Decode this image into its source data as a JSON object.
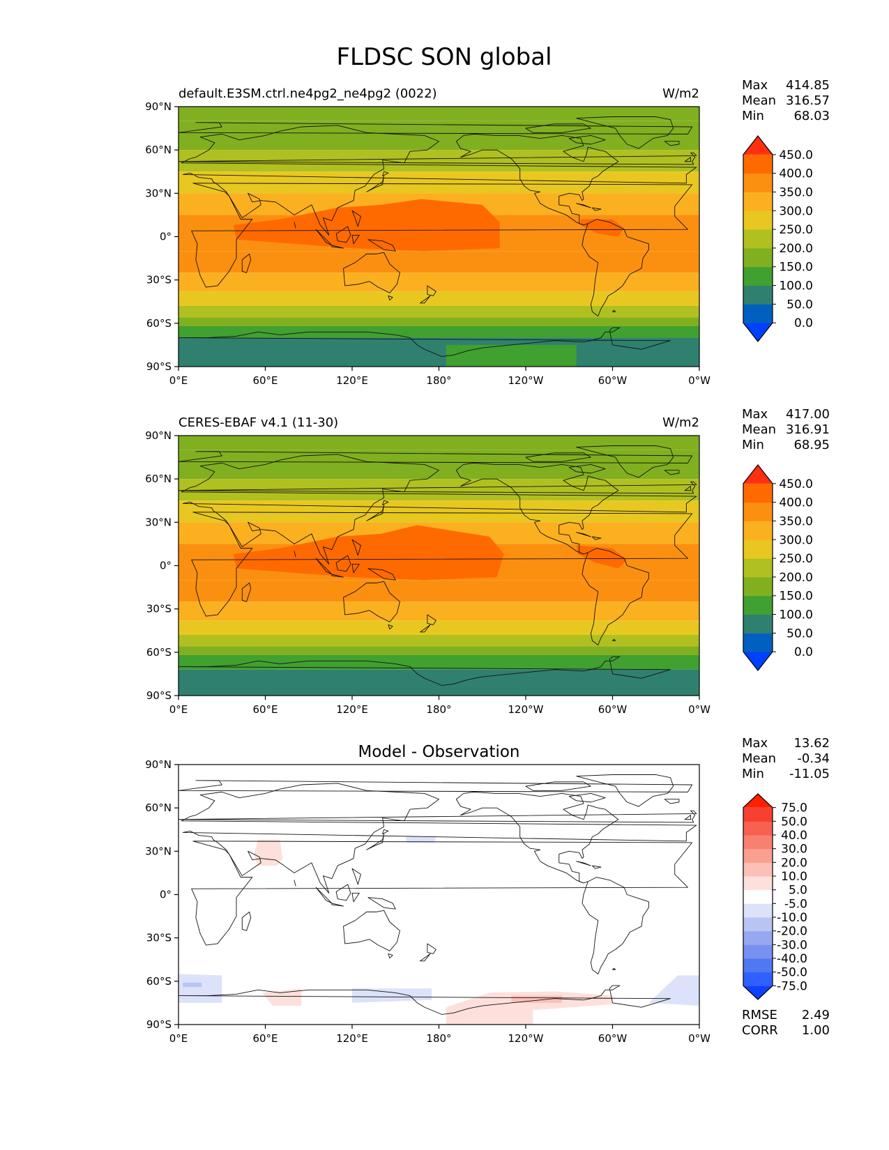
{
  "figure": {
    "title": "FLDSC SON global"
  },
  "axes": {
    "lat_ticks": [
      "90°N",
      "60°N",
      "30°N",
      "0°",
      "30°S",
      "60°S",
      "90°S"
    ],
    "lon_ticks": [
      "0°E",
      "60°E",
      "120°E",
      "180°",
      "120°W",
      "60°W",
      "0°W"
    ]
  },
  "stat_labels": {
    "max": "Max",
    "mean": "Mean",
    "min": "Min",
    "rmse": "RMSE",
    "corr": "CORR"
  },
  "palettes": {
    "absolute": [
      "#0040ff",
      "#0060c0",
      "#308070",
      "#40a030",
      "#80b020",
      "#b0c020",
      "#e8c820",
      "#fbb020",
      "#fb9010",
      "#ff6a00",
      "#ff3010"
    ],
    "difference": [
      "#1040ff",
      "#3060ff",
      "#5078f0",
      "#7890f0",
      "#98a8f0",
      "#b8c4f4",
      "#dce2fa",
      "#ffffff",
      "#fde0dc",
      "#fcc0b8",
      "#fba090",
      "#f88070",
      "#f86050",
      "#f84030",
      "#ff2000"
    ]
  },
  "chart_data": [
    {
      "type": "heatmap",
      "subtitle_left": "default.E3SM.ctrl.ne4pg2_ne4pg2 (0022)",
      "subtitle_center": "",
      "units": "W/m2",
      "stats": {
        "max": "414.85",
        "mean": "316.57",
        "min": "68.03"
      },
      "colorbar": {
        "levels": [
          "0.0",
          "50.0",
          "100.0",
          "150.0",
          "200.0",
          "250.0",
          "300.0",
          "350.0",
          "400.0",
          "450.0"
        ],
        "palette": "absolute",
        "extend": "both"
      },
      "xlim": [
        0,
        360
      ],
      "ylim": [
        -90,
        90
      ],
      "grid": false,
      "zonal_bands": [
        {
          "lat": [
            80,
            90
          ],
          "class": 4
        },
        {
          "lat": [
            60,
            80
          ],
          "class": 4
        },
        {
          "lat": [
            45,
            60
          ],
          "class": 5
        },
        {
          "lat": [
            30,
            45
          ],
          "class": 6
        },
        {
          "lat": [
            15,
            30
          ],
          "class": 7
        },
        {
          "lat": [
            -10,
            15
          ],
          "class": 8
        },
        {
          "lat": [
            -25,
            -10
          ],
          "class": 8
        },
        {
          "lat": [
            -38,
            -25
          ],
          "class": 7
        },
        {
          "lat": [
            -48,
            -38
          ],
          "class": 6
        },
        {
          "lat": [
            -56,
            -48
          ],
          "class": 5
        },
        {
          "lat": [
            -62,
            -56
          ],
          "class": 4
        },
        {
          "lat": [
            -70,
            -62
          ],
          "class": 3
        },
        {
          "lat": [
            -90,
            -70
          ],
          "class": 2
        }
      ],
      "regions": [
        {
          "class": 9,
          "lonlat": [
            [
              38,
              8
            ],
            [
              70,
              12
            ],
            [
              110,
              20
            ],
            [
              140,
              22
            ],
            [
              168,
              26
            ],
            [
              210,
              22
            ],
            [
              222,
              10
            ],
            [
              222,
              -8
            ],
            [
              170,
              -10
            ],
            [
              120,
              -8
            ],
            [
              80,
              -5
            ],
            [
              40,
              -2
            ]
          ]
        },
        {
          "class": 9,
          "lonlat": [
            [
              278,
              12
            ],
            [
              300,
              12
            ],
            [
              308,
              6
            ],
            [
              304,
              0
            ],
            [
              290,
              2
            ],
            [
              278,
              8
            ]
          ]
        },
        {
          "class": 3,
          "lonlat": [
            [
              185,
              -75
            ],
            [
              275,
              -75
            ],
            [
              275,
              -90
            ],
            [
              185,
              -90
            ]
          ]
        }
      ]
    },
    {
      "type": "heatmap",
      "subtitle_left": "CERES-EBAF v4.1 (11-30)",
      "subtitle_center": "",
      "units": "W/m2",
      "stats": {
        "max": "417.00",
        "mean": "316.91",
        "min": "68.95"
      },
      "colorbar": {
        "levels": [
          "0.0",
          "50.0",
          "100.0",
          "150.0",
          "200.0",
          "250.0",
          "300.0",
          "350.0",
          "400.0",
          "450.0"
        ],
        "palette": "absolute",
        "extend": "both"
      },
      "xlim": [
        0,
        360
      ],
      "ylim": [
        -90,
        90
      ],
      "grid": false,
      "zonal_bands": [
        {
          "lat": [
            80,
            90
          ],
          "class": 4
        },
        {
          "lat": [
            60,
            80
          ],
          "class": 4
        },
        {
          "lat": [
            45,
            60
          ],
          "class": 5
        },
        {
          "lat": [
            30,
            45
          ],
          "class": 6
        },
        {
          "lat": [
            15,
            30
          ],
          "class": 7
        },
        {
          "lat": [
            -10,
            15
          ],
          "class": 8
        },
        {
          "lat": [
            -25,
            -10
          ],
          "class": 8
        },
        {
          "lat": [
            -38,
            -25
          ],
          "class": 7
        },
        {
          "lat": [
            -48,
            -38
          ],
          "class": 6
        },
        {
          "lat": [
            -56,
            -48
          ],
          "class": 5
        },
        {
          "lat": [
            -62,
            -56
          ],
          "class": 4
        },
        {
          "lat": [
            -72,
            -62
          ],
          "class": 3
        },
        {
          "lat": [
            -90,
            -72
          ],
          "class": 2
        }
      ],
      "regions": [
        {
          "class": 9,
          "lonlat": [
            [
              38,
              8
            ],
            [
              70,
              12
            ],
            [
              110,
              20
            ],
            [
              140,
              22
            ],
            [
              165,
              28
            ],
            [
              215,
              20
            ],
            [
              225,
              8
            ],
            [
              220,
              -8
            ],
            [
              170,
              -10
            ],
            [
              120,
              -8
            ],
            [
              80,
              -5
            ],
            [
              40,
              -2
            ]
          ]
        },
        {
          "class": 9,
          "lonlat": [
            [
              275,
              14
            ],
            [
              300,
              12
            ],
            [
              310,
              4
            ],
            [
              304,
              -2
            ],
            [
              288,
              2
            ],
            [
              276,
              8
            ]
          ]
        }
      ]
    },
    {
      "type": "heatmap",
      "subtitle_left": "",
      "subtitle_center": "Model - Observation",
      "units": "",
      "stats": {
        "max": "13.62",
        "mean": "-0.34",
        "min": "-11.05",
        "rmse": "2.49",
        "corr": "1.00"
      },
      "colorbar": {
        "levels": [
          "-75.0",
          "-50.0",
          "-40.0",
          "-30.0",
          "-20.0",
          "-10.0",
          "-5.0",
          "5.0",
          "10.0",
          "20.0",
          "30.0",
          "40.0",
          "50.0",
          "75.0"
        ],
        "palette": "difference",
        "extend": "both"
      },
      "xlim": [
        0,
        360
      ],
      "ylim": [
        -90,
        90
      ],
      "grid": false,
      "zonal_bands": [
        {
          "lat": [
            -90,
            90
          ],
          "class": 7
        }
      ],
      "regions": [
        {
          "class": 8,
          "lonlat": [
            [
              55,
              38
            ],
            [
              70,
              38
            ],
            [
              72,
              25
            ],
            [
              68,
              20
            ],
            [
              55,
              20
            ],
            [
              52,
              28
            ]
          ]
        },
        {
          "class": 6,
          "lonlat": [
            [
              157,
              40
            ],
            [
              178,
              40
            ],
            [
              177,
              36
            ],
            [
              158,
              36
            ]
          ]
        },
        {
          "class": 6,
          "lonlat": [
            [
              0,
              -55
            ],
            [
              30,
              -56
            ],
            [
              30,
              -75
            ],
            [
              0,
              -75
            ]
          ]
        },
        {
          "class": 5,
          "lonlat": [
            [
              3,
              -61
            ],
            [
              16,
              -61
            ],
            [
              16,
              -64
            ],
            [
              3,
              -64
            ]
          ]
        },
        {
          "class": 8,
          "lonlat": [
            [
              58,
              -68
            ],
            [
              85,
              -65
            ],
            [
              85,
              -77
            ],
            [
              65,
              -77
            ]
          ]
        },
        {
          "class": 6,
          "lonlat": [
            [
              120,
              -65
            ],
            [
              175,
              -65
            ],
            [
              175,
              -73
            ],
            [
              120,
              -75
            ]
          ]
        },
        {
          "class": 8,
          "lonlat": [
            [
              185,
              -78
            ],
            [
              215,
              -68
            ],
            [
              260,
              -67
            ],
            [
              300,
              -70
            ],
            [
              300,
              -76
            ],
            [
              245,
              -80
            ],
            [
              245,
              -90
            ],
            [
              185,
              -90
            ]
          ]
        },
        {
          "class": 9,
          "lonlat": [
            [
              230,
              -70
            ],
            [
              265,
              -70
            ],
            [
              265,
              -75
            ],
            [
              230,
              -75
            ]
          ]
        },
        {
          "class": 6,
          "lonlat": [
            [
              325,
              -75
            ],
            [
              345,
              -56
            ],
            [
              360,
              -56
            ],
            [
              360,
              -77
            ]
          ]
        }
      ]
    }
  ]
}
